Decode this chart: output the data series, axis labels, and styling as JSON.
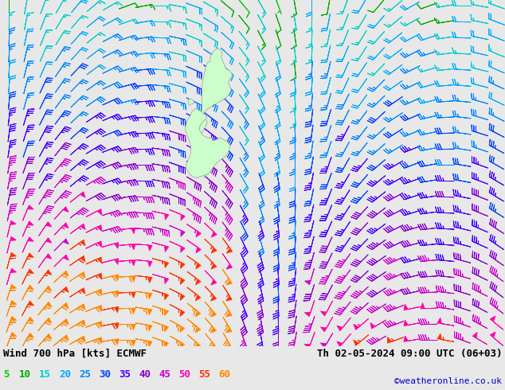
{
  "title_left": "Wind 700 hPa [kts] ECMWF",
  "title_right": "Th 02-05-2024 09:00 UTC (06+03)",
  "credit": "©weatheronline.co.uk",
  "legend_values": [
    5,
    10,
    15,
    20,
    25,
    30,
    35,
    40,
    45,
    50,
    55,
    60
  ],
  "bg_color": "#e8e8e8",
  "fig_width": 6.34,
  "fig_height": 4.9,
  "dpi": 100,
  "nrows": 22,
  "ncols": 30,
  "seed": 7,
  "land_color": "#ccffcc",
  "text_color": "#000000",
  "credit_color": "#0000cc",
  "speed_color_thresholds": [
    [
      0,
      "#00cc00"
    ],
    [
      8,
      "#00aa00"
    ],
    [
      13,
      "#00cccc"
    ],
    [
      18,
      "#00aaff"
    ],
    [
      23,
      "#0088ff"
    ],
    [
      28,
      "#0044ff"
    ],
    [
      33,
      "#4400ff"
    ],
    [
      38,
      "#8800cc"
    ],
    [
      43,
      "#cc00cc"
    ],
    [
      48,
      "#ff00aa"
    ],
    [
      53,
      "#ff3300"
    ],
    [
      58,
      "#ff8800"
    ]
  ],
  "legend_colors": [
    "#00cc00",
    "#00aa00",
    "#00cccc",
    "#00aaff",
    "#0088ff",
    "#0044ff",
    "#4400ff",
    "#8800cc",
    "#cc00cc",
    "#ff00aa",
    "#ff3300",
    "#ff8800"
  ]
}
